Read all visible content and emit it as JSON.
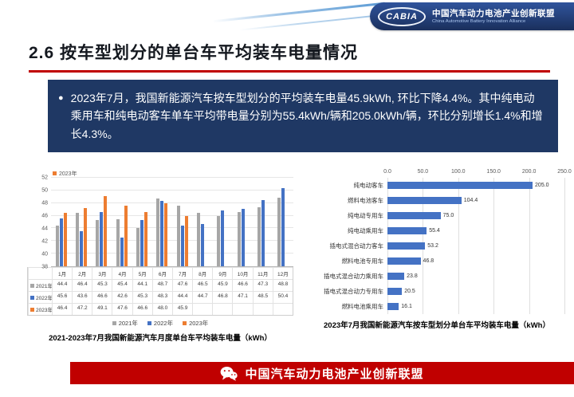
{
  "header": {
    "logo_text": "CABIA",
    "brand_cn": "中国汽车动力电池产业创新联盟",
    "brand_en": "China Automotive Battery Innovation Alliance"
  },
  "title": "2.6 按车型划分的单台车平均装车电量情况",
  "callout": {
    "bullet": "●",
    "text": "2023年7月，我国新能源汽车按车型划分的平均装车电量45.9kWh, 环比下降4.4%。其中纯电动乘用车和纯电动客车单车平均带电量分别为55.4kWh/辆和205.0kWh/辆，环比分别增长1.4%和增长4.3%。"
  },
  "footer": {
    "text": "中国汽车动力电池产业创新联盟"
  },
  "colors": {
    "accent_red": "#c00000",
    "callout_blue": "#1f3864",
    "series_2021": "#a6a6a6",
    "series_2022": "#4472c4",
    "series_2023": "#ed7d31"
  },
  "chart_data": [
    {
      "type": "bar",
      "title": "2021-2023年7月我国新能源汽车月度单台车平均装车电量（kWh）",
      "corner_label": "2023年",
      "categories": [
        "1月",
        "2月",
        "3月",
        "4月",
        "5月",
        "6月",
        "7月",
        "8月",
        "9月",
        "10月",
        "11月",
        "12月"
      ],
      "series": [
        {
          "name": "2021年",
          "color": "#a6a6a6",
          "values": [
            44.4,
            46.4,
            45.3,
            45.4,
            44.1,
            48.7,
            47.6,
            46.5,
            45.9,
            46.6,
            47.3,
            48.8
          ]
        },
        {
          "name": "2022年",
          "color": "#4472c4",
          "values": [
            45.6,
            43.6,
            46.6,
            42.6,
            45.3,
            48.3,
            44.4,
            44.7,
            46.8,
            47.1,
            48.5,
            50.4
          ]
        },
        {
          "name": "2023年",
          "color": "#ed7d31",
          "values": [
            46.4,
            47.2,
            49.1,
            47.6,
            46.6,
            48.0,
            45.9,
            null,
            null,
            null,
            null,
            null
          ]
        }
      ],
      "ylim": [
        38,
        52
      ],
      "yticks": [
        38,
        40,
        42,
        44,
        46,
        48,
        50,
        52
      ],
      "grid": true,
      "legend_position": "bottom",
      "show_table": true
    },
    {
      "type": "bar",
      "orientation": "horizontal",
      "title": "2023年7月我国新能源汽车按车型划分单台车平均装车电量（kWh）",
      "categories": [
        "纯电动客车",
        "燃料电池客车",
        "纯电动专用车",
        "纯电动乘用车",
        "插电式混合动力客车",
        "燃料电池专用车",
        "插电式混合动力乘用车",
        "插电式混合动力专用车",
        "燃料电池乘用车"
      ],
      "values": [
        205.0,
        104.4,
        75.0,
        55.4,
        53.2,
        46.8,
        23.8,
        20.5,
        16.1
      ],
      "bar_color": "#4472c4",
      "xlim": [
        0,
        250
      ],
      "xticks": [
        0,
        50,
        100,
        150,
        200,
        250
      ],
      "value_labels": true,
      "axis_position": "top"
    }
  ]
}
